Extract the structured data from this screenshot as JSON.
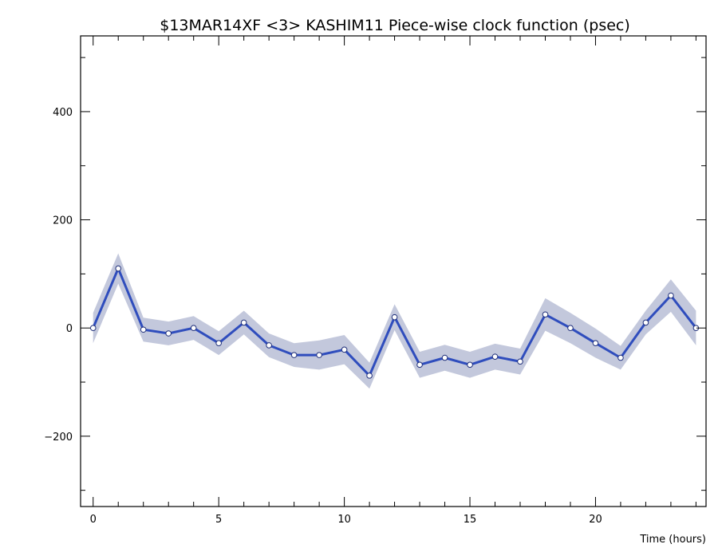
{
  "chart_data": {
    "type": "line",
    "title": "$13MAR14XF <3>  KASHIM11  Piece-wise clock function (psec)",
    "xlabel": "Time (hours)",
    "ylabel": "",
    "xlim": [
      -0.5,
      24.4
    ],
    "ylim": [
      -330,
      540
    ],
    "x_ticks": [
      0,
      5,
      10,
      15,
      20
    ],
    "y_ticks": [
      -200,
      0,
      200,
      400
    ],
    "x_tick_labels": [
      "0",
      "5",
      "10",
      "15",
      "20"
    ],
    "y_tick_labels": [
      "−200",
      "0",
      "200",
      "400"
    ],
    "grid": false,
    "colors": {
      "line": "#2f4dbd",
      "band": "#c3c8dc",
      "marker_fill": "#ffffff"
    },
    "series": [
      {
        "x": [
          0,
          1,
          2,
          3,
          4,
          5,
          6,
          7,
          8,
          9,
          10,
          11,
          12,
          13,
          14,
          15,
          16,
          17,
          18,
          19,
          20,
          21,
          22,
          23,
          24
        ],
        "values": [
          0,
          110,
          -3,
          -10,
          0,
          -28,
          10,
          -32,
          -50,
          -50,
          -40,
          -88,
          20,
          -68,
          -55,
          -68,
          -53,
          -62,
          25,
          0,
          -28,
          -55,
          10,
          60,
          0
        ],
        "band_halfwidth": [
          28,
          28,
          22,
          22,
          22,
          22,
          22,
          22,
          22,
          27,
          27,
          24,
          24,
          24,
          24,
          24,
          24,
          24,
          30,
          28,
          27,
          22,
          22,
          30,
          32
        ]
      }
    ]
  }
}
